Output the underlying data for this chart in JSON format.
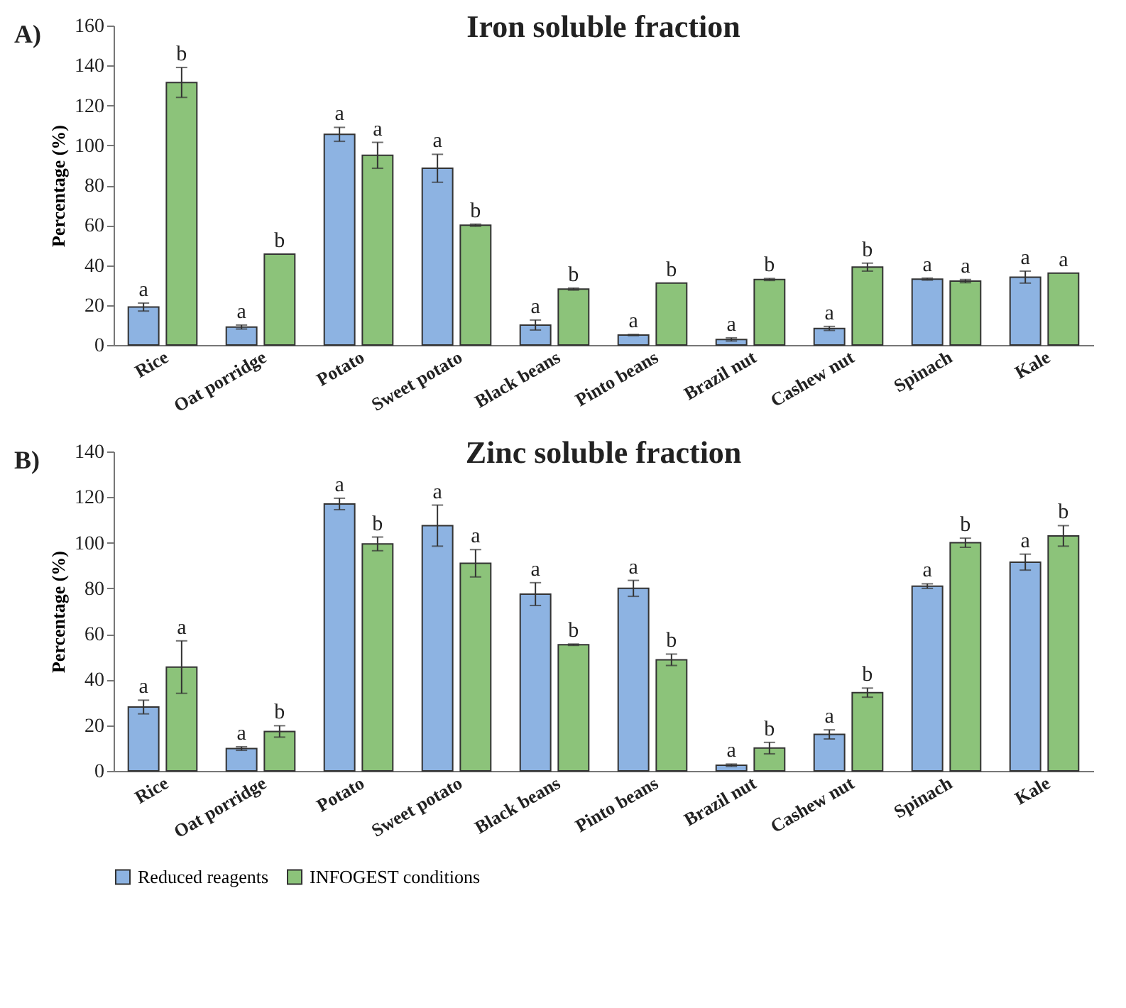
{
  "chart_data": [
    {
      "type": "bar",
      "title": "Iron soluble fraction",
      "ylabel": "Percentage (%)",
      "annotations": [
        "A)"
      ],
      "categories": [
        "Rice",
        "Oat porridge",
        "Potato",
        "Sweet potato",
        "Black beans",
        "Pinto beans",
        "Brazil nut",
        "Cashew nut",
        "Spinach",
        "Kale"
      ],
      "series": [
        {
          "name": "Reduced reagents",
          "color": "#8db3e2",
          "values": [
            19,
            9,
            105.5,
            88.5,
            10,
            5,
            2.8,
            8.3,
            33,
            34
          ],
          "errors": [
            2,
            1,
            3.5,
            7,
            2.5,
            0.3,
            0.8,
            1,
            0.5,
            3
          ],
          "value_labels": [
            "a",
            "a",
            "a",
            "a",
            "a",
            "a",
            "a",
            "a",
            "a",
            "a"
          ]
        },
        {
          "name": "INFOGEST conditions",
          "color": "#8cc37a",
          "values": [
            131.5,
            45.5,
            95,
            60,
            28,
            31,
            32.8,
            39,
            32,
            36
          ],
          "errors": [
            7.5,
            null,
            6.5,
            0.5,
            0.5,
            null,
            0.5,
            2,
            0.8,
            null
          ],
          "value_labels": [
            "b",
            "b",
            "a",
            "b",
            "b",
            "b",
            "b",
            "b",
            "a",
            "a"
          ]
        }
      ],
      "ylim": [
        0,
        160
      ],
      "yticks": [
        0,
        20,
        40,
        60,
        80,
        100,
        120,
        140,
        160
      ],
      "grid": false,
      "legend": "bottom"
    },
    {
      "type": "bar",
      "title": "Zinc soluble fraction",
      "ylabel": "Percentage (%)",
      "annotations": [
        "B)"
      ],
      "categories": [
        "Rice",
        "Oat porridge",
        "Potato",
        "Sweet potato",
        "Black beans",
        "Pinto beans",
        "Brazil nut",
        "Cashew nut",
        "Spinach",
        "Kale"
      ],
      "series": [
        {
          "name": "Reduced reagents",
          "color": "#8db3e2",
          "values": [
            28,
            9.8,
            117,
            107.5,
            77.5,
            80,
            2.5,
            16,
            81,
            91.5
          ],
          "errors": [
            3,
            0.8,
            2.5,
            9,
            5,
            3.5,
            0.5,
            2,
            1,
            3.5
          ],
          "value_labels": [
            "a",
            "a",
            "a",
            "a",
            "a",
            "a",
            "a",
            "a",
            "a",
            "a"
          ]
        },
        {
          "name": "INFOGEST conditions",
          "color": "#8cc37a",
          "values": [
            45.5,
            17.3,
            99.5,
            91,
            55.3,
            48.7,
            10,
            34.3,
            100,
            103
          ],
          "errors": [
            11.5,
            2.5,
            3,
            6,
            0.3,
            2.5,
            2.5,
            2,
            2,
            4.5
          ],
          "value_labels": [
            "a",
            "b",
            "b",
            "a",
            "b",
            "b",
            "b",
            "b",
            "b",
            "b"
          ]
        }
      ],
      "ylim": [
        0,
        140
      ],
      "yticks": [
        0,
        20,
        40,
        60,
        80,
        100,
        120,
        140
      ],
      "grid": false,
      "legend": "bottom"
    }
  ]
}
